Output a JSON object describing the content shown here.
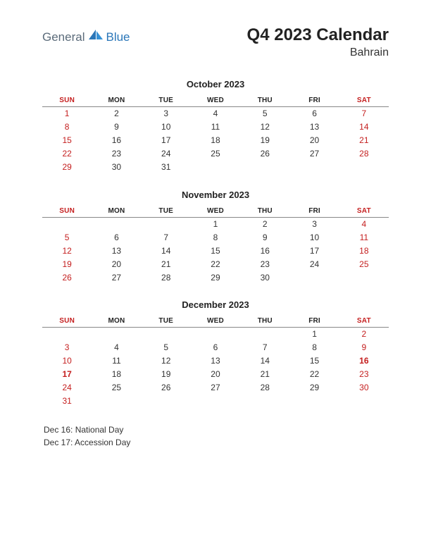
{
  "logo": {
    "text1": "General",
    "text2": "Blue",
    "shape_color": "#2a76b8",
    "text1_color": "#5b6b7a"
  },
  "header": {
    "title": "Q4 2023 Calendar",
    "subtitle": "Bahrain"
  },
  "colors": {
    "weekend": "#c41e1e",
    "text": "#333333",
    "border": "#888888"
  },
  "day_headers": [
    "SUN",
    "MON",
    "TUE",
    "WED",
    "THU",
    "FRI",
    "SAT"
  ],
  "months": [
    {
      "title": "October 2023",
      "weeks": [
        [
          {
            "d": "1",
            "w": true
          },
          {
            "d": "2"
          },
          {
            "d": "3"
          },
          {
            "d": "4"
          },
          {
            "d": "5"
          },
          {
            "d": "6"
          },
          {
            "d": "7",
            "w": true
          }
        ],
        [
          {
            "d": "8",
            "w": true
          },
          {
            "d": "9"
          },
          {
            "d": "10"
          },
          {
            "d": "11"
          },
          {
            "d": "12"
          },
          {
            "d": "13"
          },
          {
            "d": "14",
            "w": true
          }
        ],
        [
          {
            "d": "15",
            "w": true
          },
          {
            "d": "16"
          },
          {
            "d": "17"
          },
          {
            "d": "18"
          },
          {
            "d": "19"
          },
          {
            "d": "20"
          },
          {
            "d": "21",
            "w": true
          }
        ],
        [
          {
            "d": "22",
            "w": true
          },
          {
            "d": "23"
          },
          {
            "d": "24"
          },
          {
            "d": "25"
          },
          {
            "d": "26"
          },
          {
            "d": "27"
          },
          {
            "d": "28",
            "w": true
          }
        ],
        [
          {
            "d": "29",
            "w": true
          },
          {
            "d": "30"
          },
          {
            "d": "31"
          },
          {
            "d": ""
          },
          {
            "d": ""
          },
          {
            "d": ""
          },
          {
            "d": ""
          }
        ]
      ]
    },
    {
      "title": "November 2023",
      "weeks": [
        [
          {
            "d": ""
          },
          {
            "d": ""
          },
          {
            "d": ""
          },
          {
            "d": "1"
          },
          {
            "d": "2"
          },
          {
            "d": "3"
          },
          {
            "d": "4",
            "w": true
          }
        ],
        [
          {
            "d": "5",
            "w": true
          },
          {
            "d": "6"
          },
          {
            "d": "7"
          },
          {
            "d": "8"
          },
          {
            "d": "9"
          },
          {
            "d": "10"
          },
          {
            "d": "11",
            "w": true
          }
        ],
        [
          {
            "d": "12",
            "w": true
          },
          {
            "d": "13"
          },
          {
            "d": "14"
          },
          {
            "d": "15"
          },
          {
            "d": "16"
          },
          {
            "d": "17"
          },
          {
            "d": "18",
            "w": true
          }
        ],
        [
          {
            "d": "19",
            "w": true
          },
          {
            "d": "20"
          },
          {
            "d": "21"
          },
          {
            "d": "22"
          },
          {
            "d": "23"
          },
          {
            "d": "24"
          },
          {
            "d": "25",
            "w": true
          }
        ],
        [
          {
            "d": "26",
            "w": true
          },
          {
            "d": "27"
          },
          {
            "d": "28"
          },
          {
            "d": "29"
          },
          {
            "d": "30"
          },
          {
            "d": ""
          },
          {
            "d": ""
          }
        ]
      ]
    },
    {
      "title": "December 2023",
      "weeks": [
        [
          {
            "d": ""
          },
          {
            "d": ""
          },
          {
            "d": ""
          },
          {
            "d": ""
          },
          {
            "d": ""
          },
          {
            "d": "1"
          },
          {
            "d": "2",
            "w": true
          }
        ],
        [
          {
            "d": "3",
            "w": true
          },
          {
            "d": "4"
          },
          {
            "d": "5"
          },
          {
            "d": "6"
          },
          {
            "d": "7"
          },
          {
            "d": "8"
          },
          {
            "d": "9",
            "w": true
          }
        ],
        [
          {
            "d": "10",
            "w": true
          },
          {
            "d": "11"
          },
          {
            "d": "12"
          },
          {
            "d": "13"
          },
          {
            "d": "14"
          },
          {
            "d": "15"
          },
          {
            "d": "16",
            "w": true,
            "h": true
          }
        ],
        [
          {
            "d": "17",
            "w": true,
            "h": true
          },
          {
            "d": "18"
          },
          {
            "d": "19"
          },
          {
            "d": "20"
          },
          {
            "d": "21"
          },
          {
            "d": "22"
          },
          {
            "d": "23",
            "w": true
          }
        ],
        [
          {
            "d": "24",
            "w": true
          },
          {
            "d": "25"
          },
          {
            "d": "26"
          },
          {
            "d": "27"
          },
          {
            "d": "28"
          },
          {
            "d": "29"
          },
          {
            "d": "30",
            "w": true
          }
        ],
        [
          {
            "d": "31",
            "w": true
          },
          {
            "d": ""
          },
          {
            "d": ""
          },
          {
            "d": ""
          },
          {
            "d": ""
          },
          {
            "d": ""
          },
          {
            "d": ""
          }
        ]
      ]
    }
  ],
  "holidays": [
    "Dec 16: National Day",
    "Dec 17: Accession Day"
  ]
}
